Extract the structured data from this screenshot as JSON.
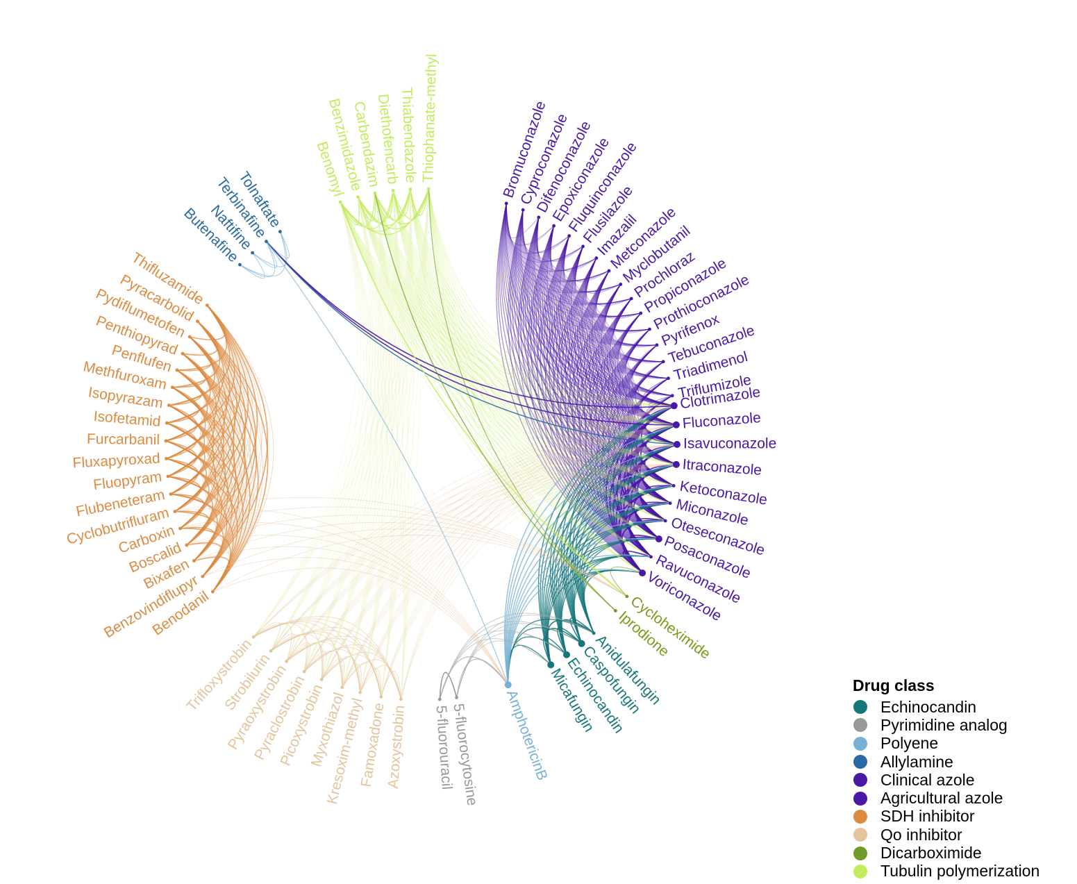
{
  "legend": {
    "title": "Drug class",
    "items": [
      {
        "label": "Echinocandin",
        "color": "#16777a"
      },
      {
        "label": "Pyrimidine analog",
        "color": "#999999"
      },
      {
        "label": "Polyene",
        "color": "#79b1d6"
      },
      {
        "label": "Allylamine",
        "color": "#2a6aa3"
      },
      {
        "label": "Clinical azole",
        "color": "#4a18a6"
      },
      {
        "label": "Agricultural azole",
        "color": "#4a18a6"
      },
      {
        "label": "SDH inhibitor",
        "color": "#dc8b41"
      },
      {
        "label": "Qo inhibitor",
        "color": "#e4c49c"
      },
      {
        "label": "Dicarboximide",
        "color": "#6f9b28"
      },
      {
        "label": "Tubulin polymerization",
        "color": "#c2ec5e"
      }
    ]
  },
  "nodes": [
    {
      "name": "Bromuconazole",
      "cls": "Agricultural azole"
    },
    {
      "name": "Cyproconazole",
      "cls": "Agricultural azole"
    },
    {
      "name": "Difenoconazole",
      "cls": "Agricultural azole"
    },
    {
      "name": "Epoxiconazole",
      "cls": "Agricultural azole"
    },
    {
      "name": "Fluquinconazole",
      "cls": "Agricultural azole"
    },
    {
      "name": "Flusilazole",
      "cls": "Agricultural azole"
    },
    {
      "name": "Imazalil",
      "cls": "Agricultural azole"
    },
    {
      "name": "Metconazole",
      "cls": "Agricultural azole"
    },
    {
      "name": "Myclobutanil",
      "cls": "Agricultural azole"
    },
    {
      "name": "Prochloraz",
      "cls": "Agricultural azole"
    },
    {
      "name": "Propiconazole",
      "cls": "Agricultural azole"
    },
    {
      "name": "Prothioconazole",
      "cls": "Agricultural azole"
    },
    {
      "name": "Pyrifenox",
      "cls": "Agricultural azole"
    },
    {
      "name": "Tebuconazole",
      "cls": "Agricultural azole"
    },
    {
      "name": "Triadimenol",
      "cls": "Agricultural azole"
    },
    {
      "name": "Triflumizole",
      "cls": "Agricultural azole"
    },
    {
      "name": "Clotrimazole",
      "cls": "Clinical azole"
    },
    {
      "name": "Fluconazole",
      "cls": "Clinical azole"
    },
    {
      "name": "Isavuconazole",
      "cls": "Clinical azole"
    },
    {
      "name": "Itraconazole",
      "cls": "Clinical azole"
    },
    {
      "name": "Ketoconazole",
      "cls": "Clinical azole"
    },
    {
      "name": "Miconazole",
      "cls": "Clinical azole"
    },
    {
      "name": "Oteseconazole",
      "cls": "Clinical azole"
    },
    {
      "name": "Posaconazole",
      "cls": "Clinical azole"
    },
    {
      "name": "Ravuconazole",
      "cls": "Clinical azole"
    },
    {
      "name": "Voriconazole",
      "cls": "Clinical azole"
    },
    {
      "name": "Cycloheximide",
      "cls": "Dicarboximide"
    },
    {
      "name": "Iprodione",
      "cls": "Dicarboximide"
    },
    {
      "name": "Anidulafungin",
      "cls": "Echinocandin"
    },
    {
      "name": "Caspofungin",
      "cls": "Echinocandin"
    },
    {
      "name": "Echinocandin",
      "cls": "Echinocandin"
    },
    {
      "name": "Micafungin",
      "cls": "Echinocandin"
    },
    {
      "name": "AmphotericinB",
      "cls": "Polyene"
    },
    {
      "name": "5-fluorocytosine",
      "cls": "Pyrimidine analog"
    },
    {
      "name": "5-fluorouracil",
      "cls": "Pyrimidine analog"
    },
    {
      "name": "Azoxystrobin",
      "cls": "Qo inhibitor"
    },
    {
      "name": "Famoxadone",
      "cls": "Qo inhibitor"
    },
    {
      "name": "Kresoxim-methyl",
      "cls": "Qo inhibitor"
    },
    {
      "name": "Myxothiazol",
      "cls": "Qo inhibitor"
    },
    {
      "name": "Picoxystrobin",
      "cls": "Qo inhibitor"
    },
    {
      "name": "Pyraclostrobin",
      "cls": "Qo inhibitor"
    },
    {
      "name": "Pyraoxystrobin",
      "cls": "Qo inhibitor"
    },
    {
      "name": "Strobilurin",
      "cls": "Qo inhibitor"
    },
    {
      "name": "Trifloxystrobin",
      "cls": "Qo inhibitor"
    },
    {
      "name": "Benodanil",
      "cls": "SDH inhibitor"
    },
    {
      "name": "Benzovindiflupyr",
      "cls": "SDH inhibitor"
    },
    {
      "name": "Bixafen",
      "cls": "SDH inhibitor"
    },
    {
      "name": "Boscalid",
      "cls": "SDH inhibitor"
    },
    {
      "name": "Carboxin",
      "cls": "SDH inhibitor"
    },
    {
      "name": "Cyclobutrifluram",
      "cls": "SDH inhibitor"
    },
    {
      "name": "Flubeneteram",
      "cls": "SDH inhibitor"
    },
    {
      "name": "Fluopyram",
      "cls": "SDH inhibitor"
    },
    {
      "name": "Fluxapyroxad",
      "cls": "SDH inhibitor"
    },
    {
      "name": "Furcarbanil",
      "cls": "SDH inhibitor"
    },
    {
      "name": "Isofetamid",
      "cls": "SDH inhibitor"
    },
    {
      "name": "Isopyrazam",
      "cls": "SDH inhibitor"
    },
    {
      "name": "Methfuroxam",
      "cls": "SDH inhibitor"
    },
    {
      "name": "Penflufen",
      "cls": "SDH inhibitor"
    },
    {
      "name": "Penthiopyrad",
      "cls": "SDH inhibitor"
    },
    {
      "name": "Pydiflumetofen",
      "cls": "SDH inhibitor"
    },
    {
      "name": "Pyracarbolid",
      "cls": "SDH inhibitor"
    },
    {
      "name": "Thifluzamide",
      "cls": "SDH inhibitor"
    },
    {
      "name": "Butenafine",
      "cls": "Allylamine"
    },
    {
      "name": "Naftifine",
      "cls": "Allylamine"
    },
    {
      "name": "Terbinafine",
      "cls": "Allylamine"
    },
    {
      "name": "Tolnaftate",
      "cls": "Allylamine"
    },
    {
      "name": "Benomyl",
      "cls": "Tubulin polymerization"
    },
    {
      "name": "Benzimidazole",
      "cls": "Tubulin polymerization"
    },
    {
      "name": "Carbendazim",
      "cls": "Tubulin polymerization"
    },
    {
      "name": "Diethofencarb",
      "cls": "Tubulin polymerization"
    },
    {
      "name": "Thiabendazole",
      "cls": "Tubulin polymerization"
    },
    {
      "name": "Thiophanate-methyl",
      "cls": "Tubulin polymerization"
    }
  ]
}
